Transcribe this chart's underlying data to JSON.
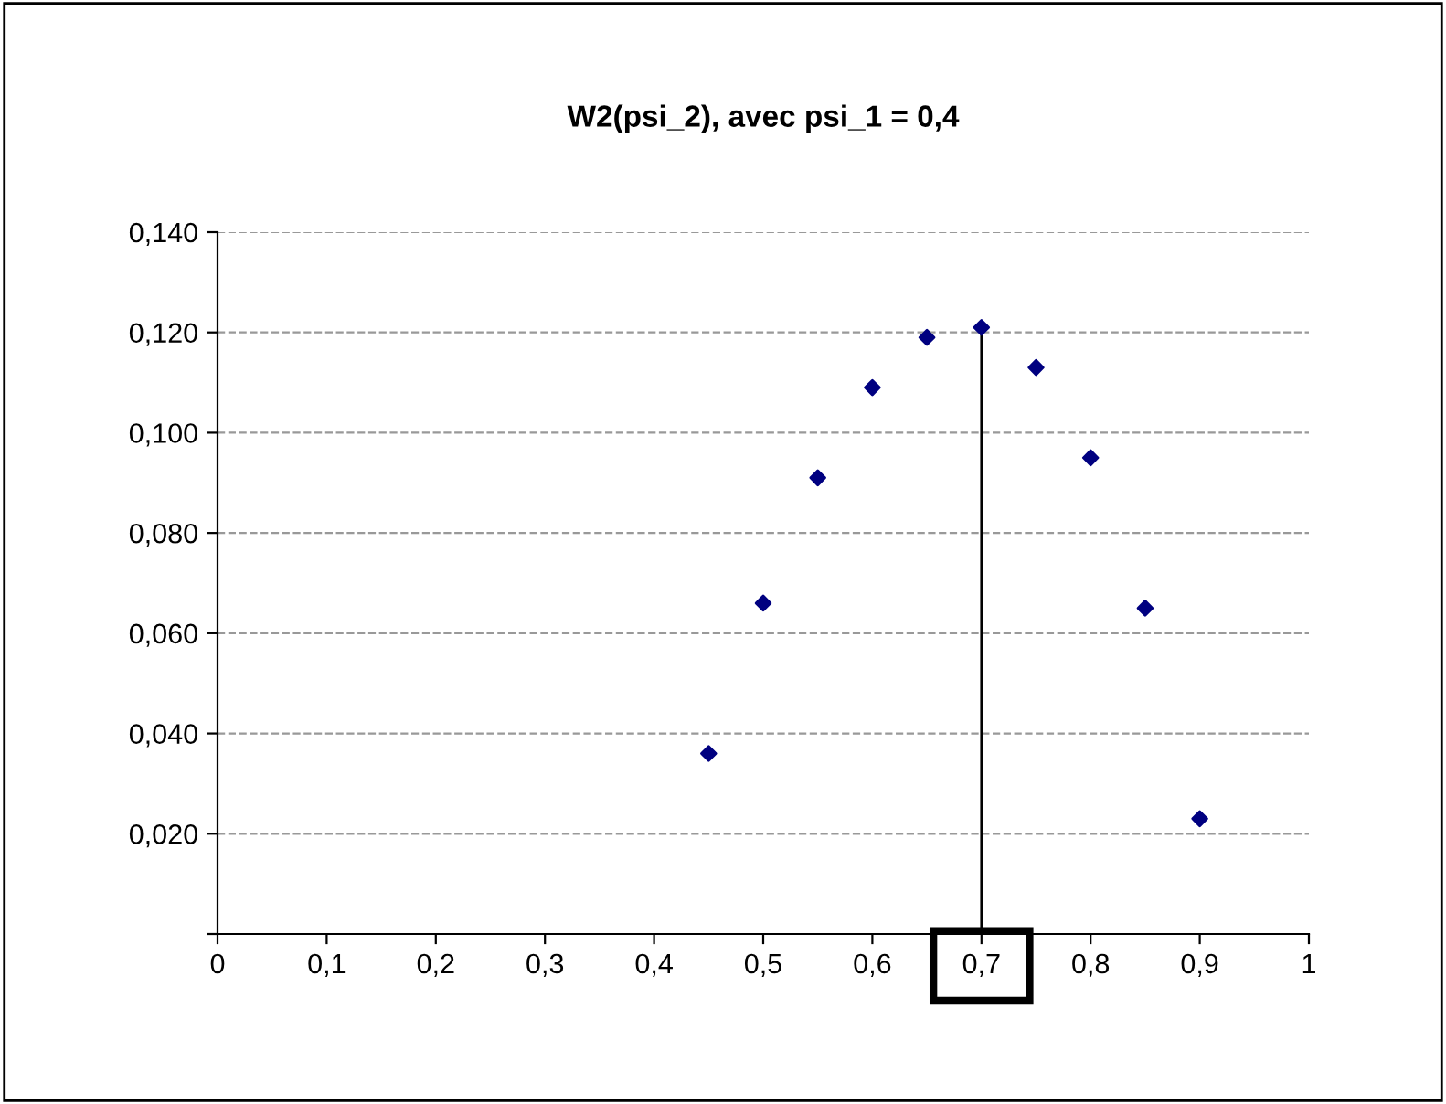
{
  "chart_data": {
    "type": "scatter",
    "title": "W2(psi_2), avec psi_1 = 0,4",
    "x": [
      0.45,
      0.5,
      0.55,
      0.6,
      0.65,
      0.7,
      0.75,
      0.8,
      0.85,
      0.9
    ],
    "series": [
      {
        "color": "#000080",
        "values": [
          0.036,
          0.066,
          0.091,
          0.109,
          0.119,
          0.121,
          0.113,
          0.095,
          0.065,
          0.023
        ]
      }
    ],
    "marker": "diamond",
    "grid": "y",
    "legend": false,
    "xlim": [
      0,
      1
    ],
    "xticks": [
      {
        "value": 0,
        "label": "0"
      },
      {
        "value": 0.1,
        "label": "0,1"
      },
      {
        "value": 0.2,
        "label": "0,2"
      },
      {
        "value": 0.3,
        "label": "0,3"
      },
      {
        "value": 0.4,
        "label": "0,4"
      },
      {
        "value": 0.5,
        "label": "0,5"
      },
      {
        "value": 0.6,
        "label": "0,6"
      },
      {
        "value": 0.7,
        "label": "0,7"
      },
      {
        "value": 0.8,
        "label": "0,8"
      },
      {
        "value": 0.9,
        "label": "0,9"
      },
      {
        "value": 1,
        "label": "1"
      }
    ],
    "ylim": [
      0,
      0.14
    ],
    "yticks": [
      {
        "value": 0,
        "label": null
      },
      {
        "value": 0.02,
        "label": "0,020"
      },
      {
        "value": 0.04,
        "label": "0,040"
      },
      {
        "value": 0.06,
        "label": "0,060"
      },
      {
        "value": 0.08,
        "label": "0,080"
      },
      {
        "value": 0.1,
        "label": "0,100"
      },
      {
        "value": 0.12,
        "label": "0,120"
      },
      {
        "value": 0.14,
        "label": "0,140"
      }
    ],
    "ref_lines": [
      {
        "axis": "x",
        "value": 0.7,
        "color": "#000000",
        "line_style": "solid"
      }
    ]
  }
}
